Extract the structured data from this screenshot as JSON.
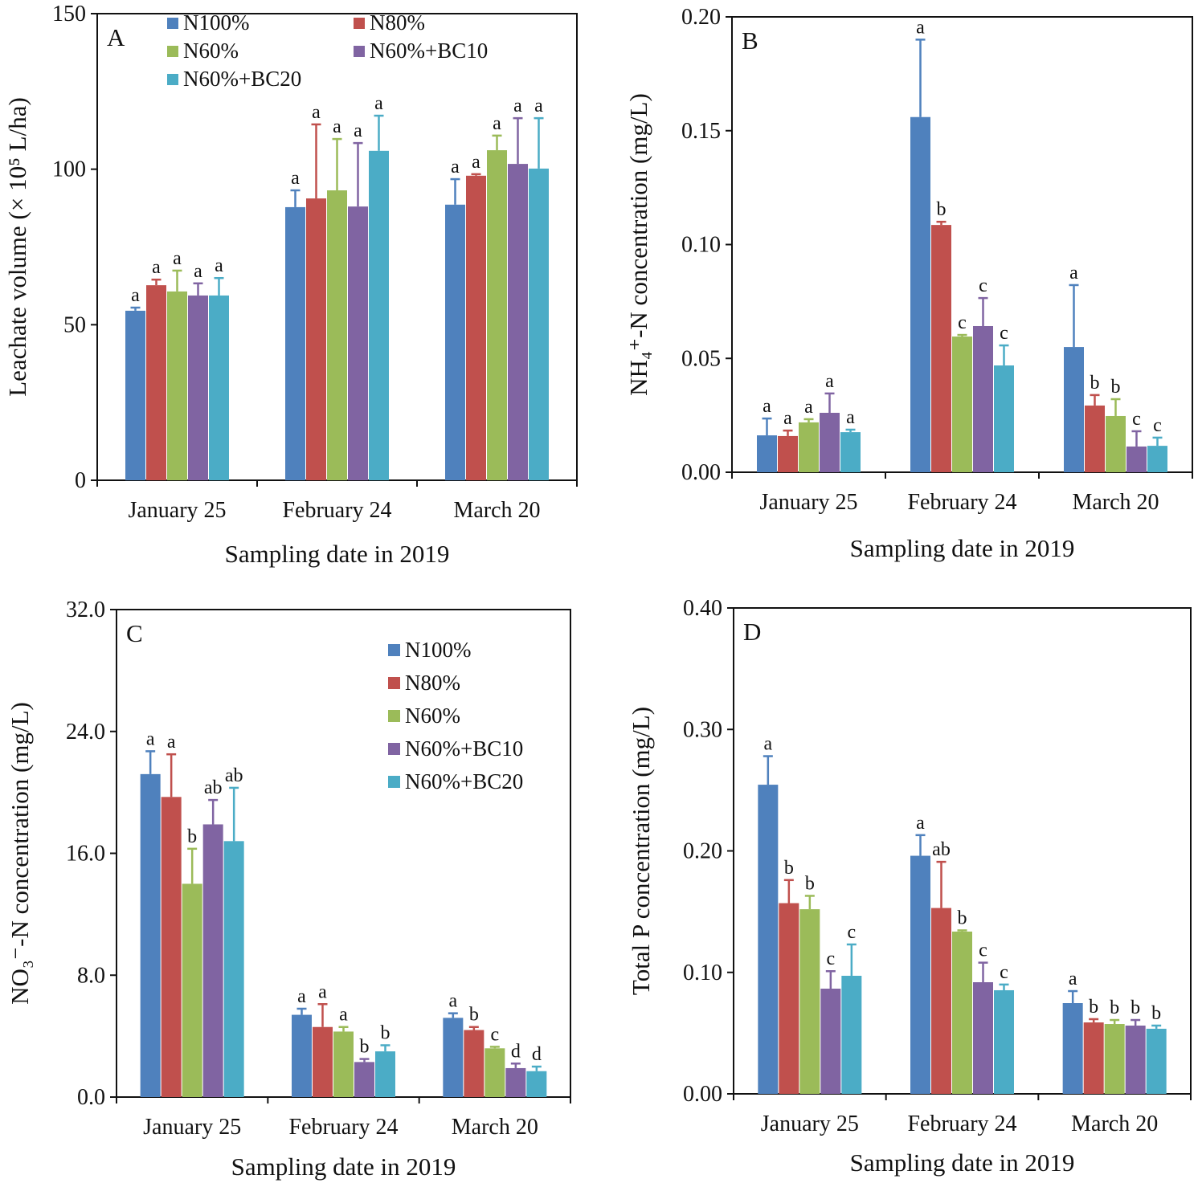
{
  "colors": [
    "#4F81BD",
    "#C0504D",
    "#9BBB59",
    "#8064A2",
    "#4BACC6"
  ],
  "chart_data": [
    {
      "type": "bar",
      "panel_label": "A",
      "ylabel": "Leachate volume (× 10⁵ L/ha)",
      "xlabel": "Sampling date in 2019",
      "categories": [
        "January 25",
        "February 24",
        "March 20"
      ],
      "ylim": [
        0,
        150
      ],
      "yticks": [
        0,
        50,
        100,
        150
      ],
      "ytick_labels": [
        "0",
        "50",
        "100",
        "150"
      ],
      "legend": "top-two-columns",
      "series": [
        {
          "name": "N100%",
          "values": [
            54.5,
            87.8,
            88.6
          ],
          "errors": [
            1.0,
            5.4,
            8.2
          ],
          "letters": [
            "a",
            "a",
            "a"
          ]
        },
        {
          "name": "N80%",
          "values": [
            62.7,
            90.6,
            97.9
          ],
          "errors": [
            1.8,
            23.8,
            0.5
          ],
          "letters": [
            "a",
            "a",
            "a"
          ]
        },
        {
          "name": "N60%",
          "values": [
            60.7,
            93.2,
            106.1
          ],
          "errors": [
            6.7,
            16.5,
            4.7
          ],
          "letters": [
            "a",
            "a",
            "a"
          ]
        },
        {
          "name": "N60%+BC10",
          "values": [
            59.4,
            88.0,
            101.7
          ],
          "errors": [
            3.9,
            20.4,
            14.7
          ],
          "letters": [
            "a",
            "a",
            "a"
          ]
        },
        {
          "name": "N60%+BC20",
          "values": [
            59.4,
            105.9,
            100.2
          ],
          "errors": [
            5.6,
            11.3,
            16.2
          ],
          "letters": [
            "a",
            "a",
            "a"
          ]
        }
      ]
    },
    {
      "type": "bar",
      "panel_label": "B",
      "ylabel": "NH₄⁺-N concentration (mg/L)",
      "xlabel": "Sampling date in 2019",
      "categories": [
        "January 25",
        "February 24",
        "March 20"
      ],
      "ylim": [
        0,
        0.2
      ],
      "yticks": [
        0,
        0.05,
        0.1,
        0.15,
        0.2
      ],
      "ytick_labels": [
        "0.00",
        "0.05",
        "0.10",
        "0.15",
        "0.20"
      ],
      "legend": "none",
      "series": [
        {
          "name": "N100%",
          "values": [
            0.0162,
            0.156,
            0.055
          ],
          "errors": [
            0.0074,
            0.034,
            0.0272
          ],
          "letters": [
            "a",
            "a",
            "a"
          ]
        },
        {
          "name": "N80%",
          "values": [
            0.0159,
            0.1086,
            0.0293
          ],
          "errors": [
            0.0024,
            0.0014,
            0.0046
          ],
          "letters": [
            "a",
            "b",
            "b"
          ]
        },
        {
          "name": "N60%",
          "values": [
            0.0219,
            0.0596,
            0.0247
          ],
          "errors": [
            0.0014,
            0.0007,
            0.0074
          ],
          "letters": [
            "a",
            "c",
            "b"
          ]
        },
        {
          "name": "N60%+BC10",
          "values": [
            0.0261,
            0.0642,
            0.0113
          ],
          "errors": [
            0.0085,
            0.0123,
            0.0067
          ],
          "letters": [
            "a",
            "c",
            "c"
          ]
        },
        {
          "name": "N60%+BC20",
          "values": [
            0.0176,
            0.0469,
            0.0116
          ],
          "errors": [
            0.0011,
            0.0088,
            0.0036
          ],
          "letters": [
            "a",
            "c",
            "c"
          ]
        }
      ]
    },
    {
      "type": "bar",
      "panel_label": "C",
      "ylabel": "NO₃⁻-N concentration (mg/L)",
      "xlabel": "Sampling date in 2019",
      "categories": [
        "January 25",
        "February 24",
        "March 20"
      ],
      "ylim": [
        0,
        32
      ],
      "yticks": [
        0,
        8,
        16,
        24,
        32
      ],
      "ytick_labels": [
        "0.0",
        "8.0",
        "16.0",
        "24.0",
        "32.0"
      ],
      "legend": "top-right",
      "series": [
        {
          "name": "N100%",
          "values": [
            21.2,
            5.4,
            5.2
          ],
          "errors": [
            1.5,
            0.4,
            0.3
          ],
          "letters": [
            "a",
            "a",
            "a"
          ]
        },
        {
          "name": "N80%",
          "values": [
            19.7,
            4.6,
            4.4
          ],
          "errors": [
            2.8,
            1.5,
            0.2
          ],
          "letters": [
            "a",
            "a",
            "b"
          ]
        },
        {
          "name": "N60%",
          "values": [
            14.0,
            4.3,
            3.2
          ],
          "errors": [
            2.3,
            0.3,
            0.1
          ],
          "letters": [
            "b",
            "a",
            "c"
          ]
        },
        {
          "name": "N60%+BC10",
          "values": [
            17.9,
            2.3,
            1.9
          ],
          "errors": [
            1.6,
            0.2,
            0.3
          ],
          "letters": [
            "ab",
            "b",
            "d"
          ]
        },
        {
          "name": "N60%+BC20",
          "values": [
            16.8,
            3.0,
            1.7
          ],
          "errors": [
            3.5,
            0.4,
            0.3
          ],
          "letters": [
            "ab",
            "b",
            "d"
          ]
        }
      ]
    },
    {
      "type": "bar",
      "panel_label": "D",
      "ylabel": "Total P concentration (mg/L)",
      "xlabel": "Sampling date in 2019",
      "categories": [
        "January 25",
        "February 24",
        "March 20"
      ],
      "ylim": [
        0,
        0.4
      ],
      "yticks": [
        0,
        0.1,
        0.2,
        0.3,
        0.4
      ],
      "ytick_labels": [
        "0.00",
        "0.10",
        "0.20",
        "0.30",
        "0.40"
      ],
      "legend": "none",
      "series": [
        {
          "name": "N100%",
          "values": [
            0.2545,
            0.196,
            0.0747
          ],
          "errors": [
            0.0235,
            0.017,
            0.0099
          ],
          "letters": [
            "a",
            "a",
            "a"
          ]
        },
        {
          "name": "N80%",
          "values": [
            0.157,
            0.153,
            0.0588
          ],
          "errors": [
            0.019,
            0.038,
            0.0027
          ],
          "letters": [
            "b",
            "ab",
            "b"
          ]
        },
        {
          "name": "N60%",
          "values": [
            0.152,
            0.1336,
            0.0575
          ],
          "errors": [
            0.011,
            0.001,
            0.0033
          ],
          "letters": [
            "b",
            "b",
            "b"
          ]
        },
        {
          "name": "N60%+BC10",
          "values": [
            0.0866,
            0.0919,
            0.0562
          ],
          "errors": [
            0.0144,
            0.0161,
            0.0046
          ],
          "letters": [
            "c",
            "c",
            "b"
          ]
        },
        {
          "name": "N60%+BC20",
          "values": [
            0.0972,
            0.0853,
            0.0536
          ],
          "errors": [
            0.0258,
            0.0047,
            0.0026
          ],
          "letters": [
            "c",
            "c",
            "b"
          ]
        }
      ]
    }
  ]
}
